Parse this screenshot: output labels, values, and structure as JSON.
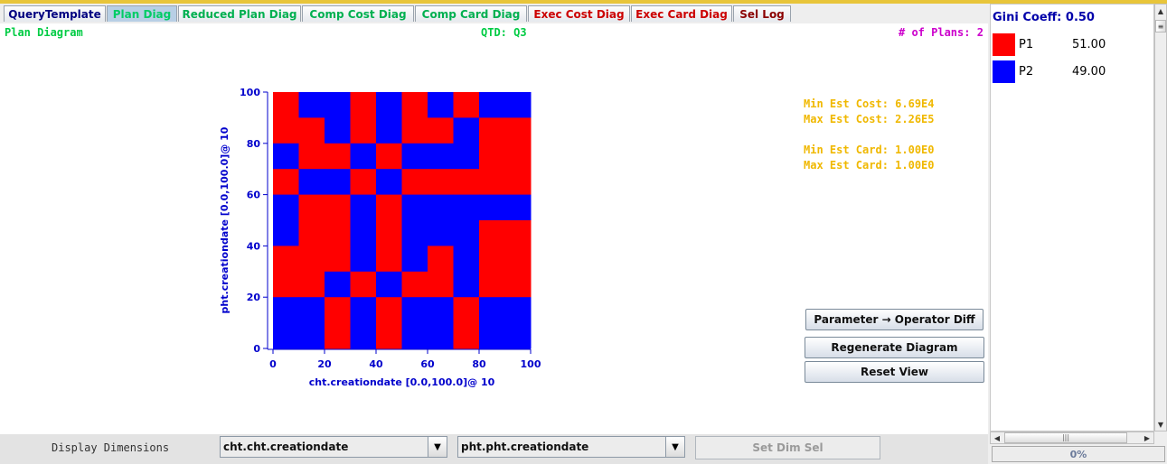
{
  "tabs": [
    {
      "label": "QueryTemplate",
      "color": "#000080",
      "active": false,
      "width": 113
    },
    {
      "label": "Plan Diag",
      "color": "#00cc66",
      "active": true,
      "width": 78
    },
    {
      "label": "Reduced Plan Diag",
      "color": "#00b050",
      "active": false,
      "width": 136
    },
    {
      "label": "Comp Cost Diag",
      "color": "#00b050",
      "active": false,
      "width": 124
    },
    {
      "label": "Comp Card Diag",
      "color": "#00b050",
      "active": false,
      "width": 124
    },
    {
      "label": "Exec Cost Diag",
      "color": "#cc0000",
      "active": false,
      "width": 113
    },
    {
      "label": "Exec Card Diag",
      "color": "#cc0000",
      "active": false,
      "width": 112
    },
    {
      "label": "Sel Log",
      "color": "#8b0000",
      "active": false,
      "width": 64
    }
  ],
  "header": {
    "diagram_title": "Plan Diagram",
    "qtd": "QTD: Q3",
    "num_plans": "# of Plans: 2"
  },
  "stats": {
    "min_cost": "Min Est Cost: 6.69E4",
    "max_cost": "Max Est Cost: 2.26E5",
    "min_card": "Min Est Card: 1.00E0",
    "max_card": "Max Est Card: 1.00E0"
  },
  "colors": {
    "P1": "#ff0000",
    "P2": "#0000ff",
    "axis": "#0000cc",
    "stats": "#f0b800",
    "title": "#00cc44",
    "plans": "#cc00cc"
  },
  "chart_data": {
    "type": "heatmap",
    "xlabel": "cht.creationdate [0.0,100.0]@ 10",
    "ylabel": "pht.creationdate [0.0,100.0]@ 10",
    "x_ticks": [
      0,
      20,
      40,
      60,
      80,
      100
    ],
    "y_ticks": [
      0,
      20,
      40,
      60,
      80,
      100
    ],
    "xlim": [
      0,
      100
    ],
    "ylim": [
      0,
      100
    ],
    "resolution": 10,
    "legend": {
      "1": "P1",
      "2": "P2"
    },
    "grid_rows_top_to_bottom": [
      [
        1,
        2,
        2,
        1,
        2,
        1,
        2,
        1,
        2,
        2
      ],
      [
        1,
        1,
        2,
        1,
        2,
        1,
        1,
        2,
        1,
        1
      ],
      [
        2,
        1,
        1,
        2,
        1,
        2,
        2,
        2,
        1,
        1
      ],
      [
        1,
        2,
        2,
        1,
        2,
        1,
        1,
        1,
        1,
        1
      ],
      [
        2,
        1,
        1,
        2,
        1,
        2,
        2,
        2,
        2,
        2
      ],
      [
        2,
        1,
        1,
        2,
        1,
        2,
        2,
        2,
        1,
        1
      ],
      [
        1,
        1,
        1,
        2,
        1,
        2,
        1,
        2,
        1,
        1
      ],
      [
        1,
        1,
        2,
        1,
        2,
        1,
        1,
        2,
        1,
        1
      ],
      [
        2,
        2,
        1,
        2,
        1,
        2,
        2,
        1,
        2,
        2
      ],
      [
        2,
        2,
        1,
        2,
        1,
        2,
        2,
        1,
        2,
        2
      ]
    ]
  },
  "buttons": {
    "param_diff": "Parameter → Operator Diff",
    "regenerate": "Regenerate Diagram",
    "reset": "Reset View"
  },
  "bottom": {
    "display_dimensions": "Display Dimensions",
    "dim1": "cht.cht.creationdate",
    "dim2": "pht.pht.creationdate",
    "set_dim": "Set Dim Sel"
  },
  "side": {
    "gini": "Gini Coeff: 0.50",
    "plans": [
      {
        "name": "P1",
        "value": "51.00",
        "color": "#ff0000"
      },
      {
        "name": "P2",
        "value": "49.00",
        "color": "#0000ff"
      }
    ],
    "progress": "0%"
  }
}
